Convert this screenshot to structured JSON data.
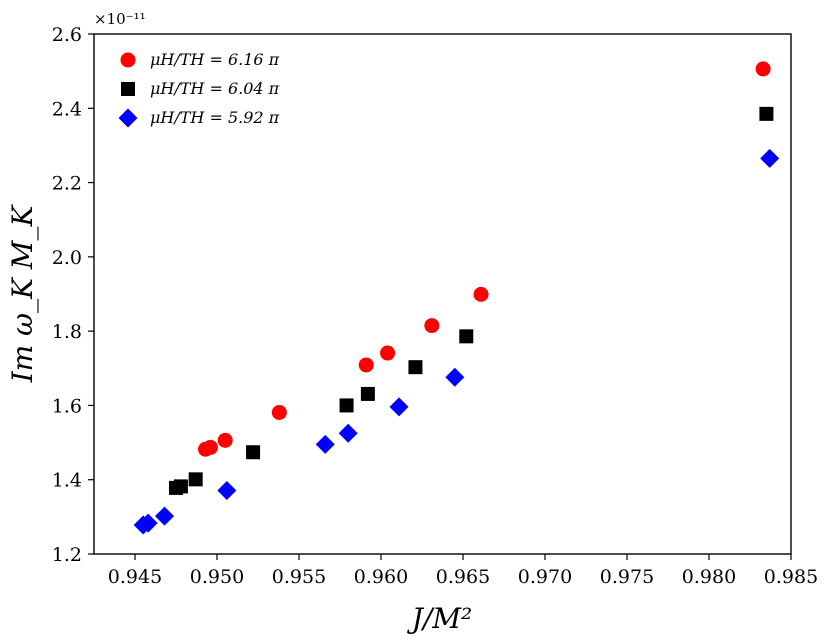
{
  "chart_data": {
    "type": "scatter",
    "title": "",
    "xlabel": "J/M²",
    "ylabel": "Im ω_K M_K",
    "y_offset_label": "×10⁻¹¹",
    "xlim": [
      0.9425,
      0.985
    ],
    "ylim": [
      1.2,
      2.6
    ],
    "x_ticks": [
      0.945,
      0.95,
      0.955,
      0.96,
      0.965,
      0.97,
      0.975,
      0.98,
      0.985
    ],
    "x_tick_labels": [
      "0.945",
      "0.950",
      "0.955",
      "0.960",
      "0.965",
      "0.970",
      "0.975",
      "0.980",
      "0.985"
    ],
    "y_ticks": [
      1.2,
      1.4,
      1.6,
      1.8,
      2.0,
      2.2,
      2.4,
      2.6
    ],
    "y_tick_labels": [
      "1.2",
      "1.4",
      "1.6",
      "1.8",
      "2.0",
      "2.2",
      "2.4",
      "2.6"
    ],
    "grid": false,
    "legend_position": "top-left",
    "series": [
      {
        "name": "μH/TH = 6.16 π",
        "color": "#ff0000",
        "marker": "circle",
        "points": [
          [
            0.9493,
            1.482
          ],
          [
            0.9496,
            1.487
          ],
          [
            0.9505,
            1.506
          ],
          [
            0.9538,
            1.581
          ],
          [
            0.9591,
            1.709
          ],
          [
            0.9604,
            1.741
          ],
          [
            0.9631,
            1.815
          ],
          [
            0.9661,
            1.899
          ],
          [
            0.9833,
            2.506
          ]
        ]
      },
      {
        "name": "μH/TH = 6.04 π",
        "color": "#000000",
        "marker": "square",
        "points": [
          [
            0.9475,
            1.378
          ],
          [
            0.9478,
            1.382
          ],
          [
            0.9487,
            1.401
          ],
          [
            0.9522,
            1.474
          ],
          [
            0.9579,
            1.6
          ],
          [
            0.9592,
            1.631
          ],
          [
            0.9621,
            1.703
          ],
          [
            0.9652,
            1.786
          ],
          [
            0.9835,
            2.385
          ]
        ]
      },
      {
        "name": "μH/TH = 5.92 π",
        "color": "#0000ff",
        "marker": "diamond",
        "points": [
          [
            0.9455,
            1.278
          ],
          [
            0.9458,
            1.283
          ],
          [
            0.9468,
            1.302
          ],
          [
            0.9506,
            1.371
          ],
          [
            0.9566,
            1.495
          ],
          [
            0.958,
            1.525
          ],
          [
            0.9611,
            1.596
          ],
          [
            0.9645,
            1.676
          ],
          [
            0.9837,
            2.265
          ]
        ]
      }
    ]
  }
}
